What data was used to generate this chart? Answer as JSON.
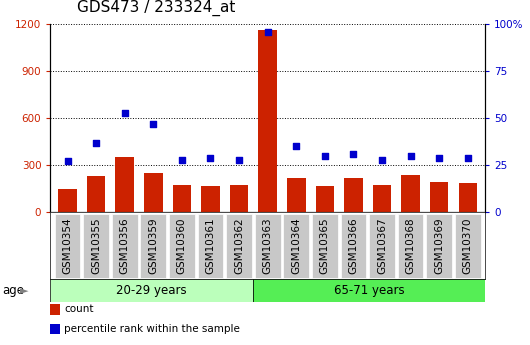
{
  "title": "GDS473 / 233324_at",
  "samples": [
    "GSM10354",
    "GSM10355",
    "GSM10356",
    "GSM10359",
    "GSM10360",
    "GSM10361",
    "GSM10362",
    "GSM10363",
    "GSM10364",
    "GSM10365",
    "GSM10366",
    "GSM10367",
    "GSM10368",
    "GSM10369",
    "GSM10370"
  ],
  "counts": [
    150,
    230,
    350,
    250,
    175,
    170,
    175,
    1160,
    220,
    170,
    215,
    175,
    235,
    195,
    185
  ],
  "percentiles": [
    27,
    37,
    53,
    47,
    28,
    29,
    28,
    96,
    35,
    30,
    31,
    28,
    30,
    29,
    29
  ],
  "group1_label": "20-29 years",
  "group2_label": "65-71 years",
  "group1_count": 7,
  "bar_color": "#cc2200",
  "dot_color": "#0000cc",
  "group1_bg": "#bbffbb",
  "group2_bg": "#55ee55",
  "cell_bg": "#c8c8c8",
  "ylim_left": [
    0,
    1200
  ],
  "ylim_right": [
    0,
    100
  ],
  "yticks_left": [
    0,
    300,
    600,
    900,
    1200
  ],
  "yticks_right": [
    0,
    25,
    50,
    75,
    100
  ],
  "ytick_labels_left": [
    "0",
    "300",
    "600",
    "900",
    "1200"
  ],
  "ytick_labels_right": [
    "0",
    "25",
    "50",
    "75",
    "100%"
  ],
  "legend_count_label": "count",
  "legend_pct_label": "percentile rank within the sample",
  "age_label": "age",
  "title_fontsize": 11,
  "tick_fontsize": 7.5,
  "label_fontsize": 8.5
}
